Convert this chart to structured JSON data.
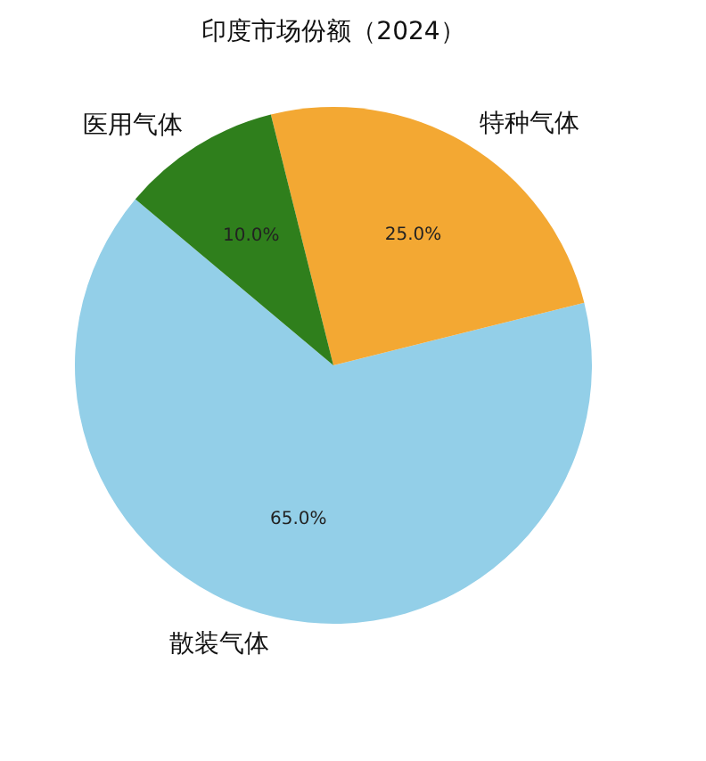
{
  "chart_data": {
    "type": "pie",
    "title": "印度市场份额（2024）",
    "categories": [
      "散装气体",
      "特种气体",
      "医用气体"
    ],
    "values": [
      65,
      25,
      10
    ],
    "colors": [
      "#93cfe8",
      "#f3a833",
      "#2f7f1c"
    ],
    "value_labels": [
      "65.0%",
      "25.0%",
      "10.0%"
    ]
  }
}
